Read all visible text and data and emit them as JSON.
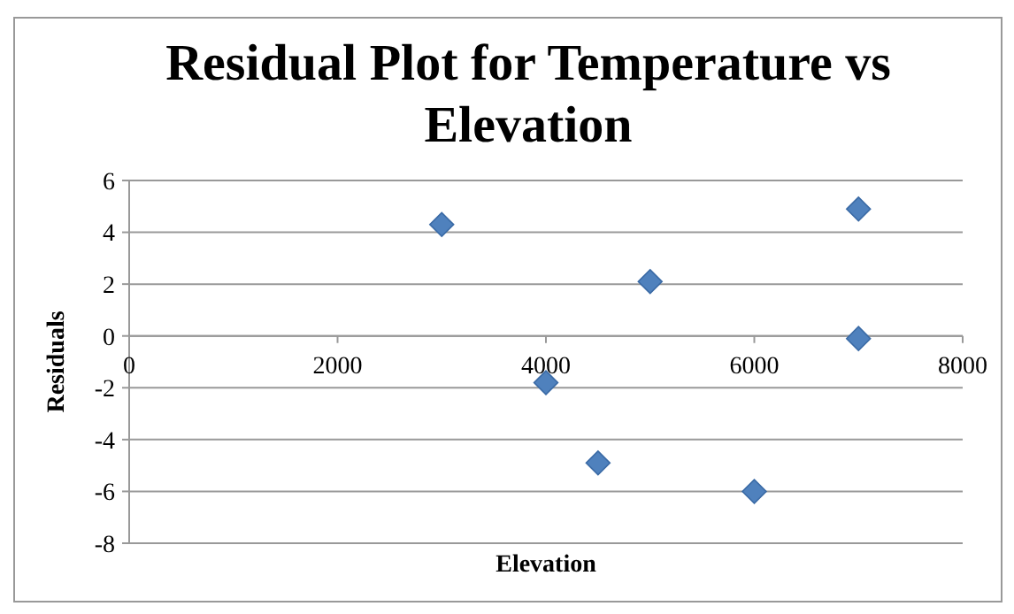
{
  "chart_data": {
    "type": "scatter",
    "title": "Residual Plot for Temperature vs Elevation",
    "xlabel": "Elevation",
    "ylabel": "Residuals",
    "x": [
      3000,
      4000,
      4500,
      5000,
      6000,
      7000,
      7000
    ],
    "series": [
      {
        "color": "#4f81bd",
        "values": [
          4.3,
          -1.8,
          -4.9,
          2.1,
          -6.0,
          4.9,
          -0.1
        ]
      }
    ],
    "xlim": [
      0,
      8000
    ],
    "xticks": [
      0,
      2000,
      4000,
      6000,
      8000
    ],
    "ylim": [
      -8,
      6
    ],
    "yticks": [
      -8,
      -6,
      -4,
      -2,
      0,
      2,
      4,
      6
    ],
    "grid": "y",
    "marker": "diamond"
  }
}
